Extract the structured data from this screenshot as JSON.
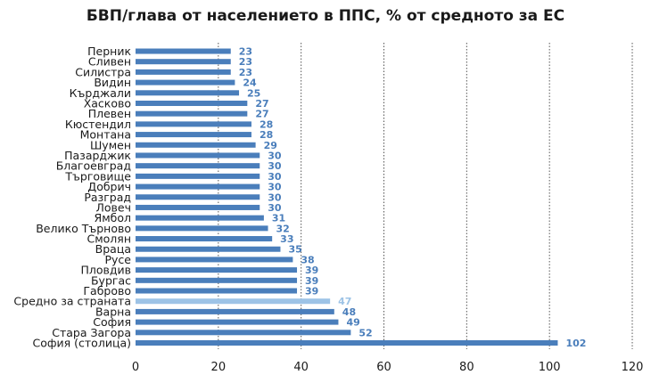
{
  "chart_data": {
    "type": "bar",
    "orientation": "horizontal",
    "title": "БВП/глава от населението в ППС, % от средното за ЕС",
    "xlabel": "",
    "ylabel": "",
    "xlim": [
      0,
      120
    ],
    "x_ticks": [
      0,
      20,
      40,
      60,
      80,
      100,
      120
    ],
    "grid": "vertical dashed",
    "categories": [
      "Перник",
      "Сливен",
      "Силистра",
      "Видин",
      "Кърджали",
      "Хасково",
      "Плевен",
      "Кюстендил",
      "Монтана",
      "Шумен",
      "Пазарджик",
      "Благоевград",
      "Търговище",
      "Добрич",
      "Разград",
      "Ловеч",
      "Ямбол",
      "Велико Търново",
      "Смолян",
      "Враца",
      "Русе",
      "Пловдив",
      "Бургас",
      "Габрово",
      "Средно за страната",
      "Варна",
      "София",
      "Стара Загора",
      "София (столица)"
    ],
    "values": [
      23,
      23,
      23,
      24,
      25,
      27,
      27,
      28,
      28,
      29,
      30,
      30,
      30,
      30,
      30,
      30,
      31,
      32,
      33,
      35,
      38,
      39,
      39,
      39,
      47,
      48,
      49,
      52,
      102
    ],
    "highlight_category": "Средно за страната",
    "colors": {
      "bar": "#4a7ebb",
      "highlight": "#9dc3e6",
      "label": "#4a7ebb",
      "highlight_label": "#9dc3e6",
      "grid": "#555555"
    }
  }
}
